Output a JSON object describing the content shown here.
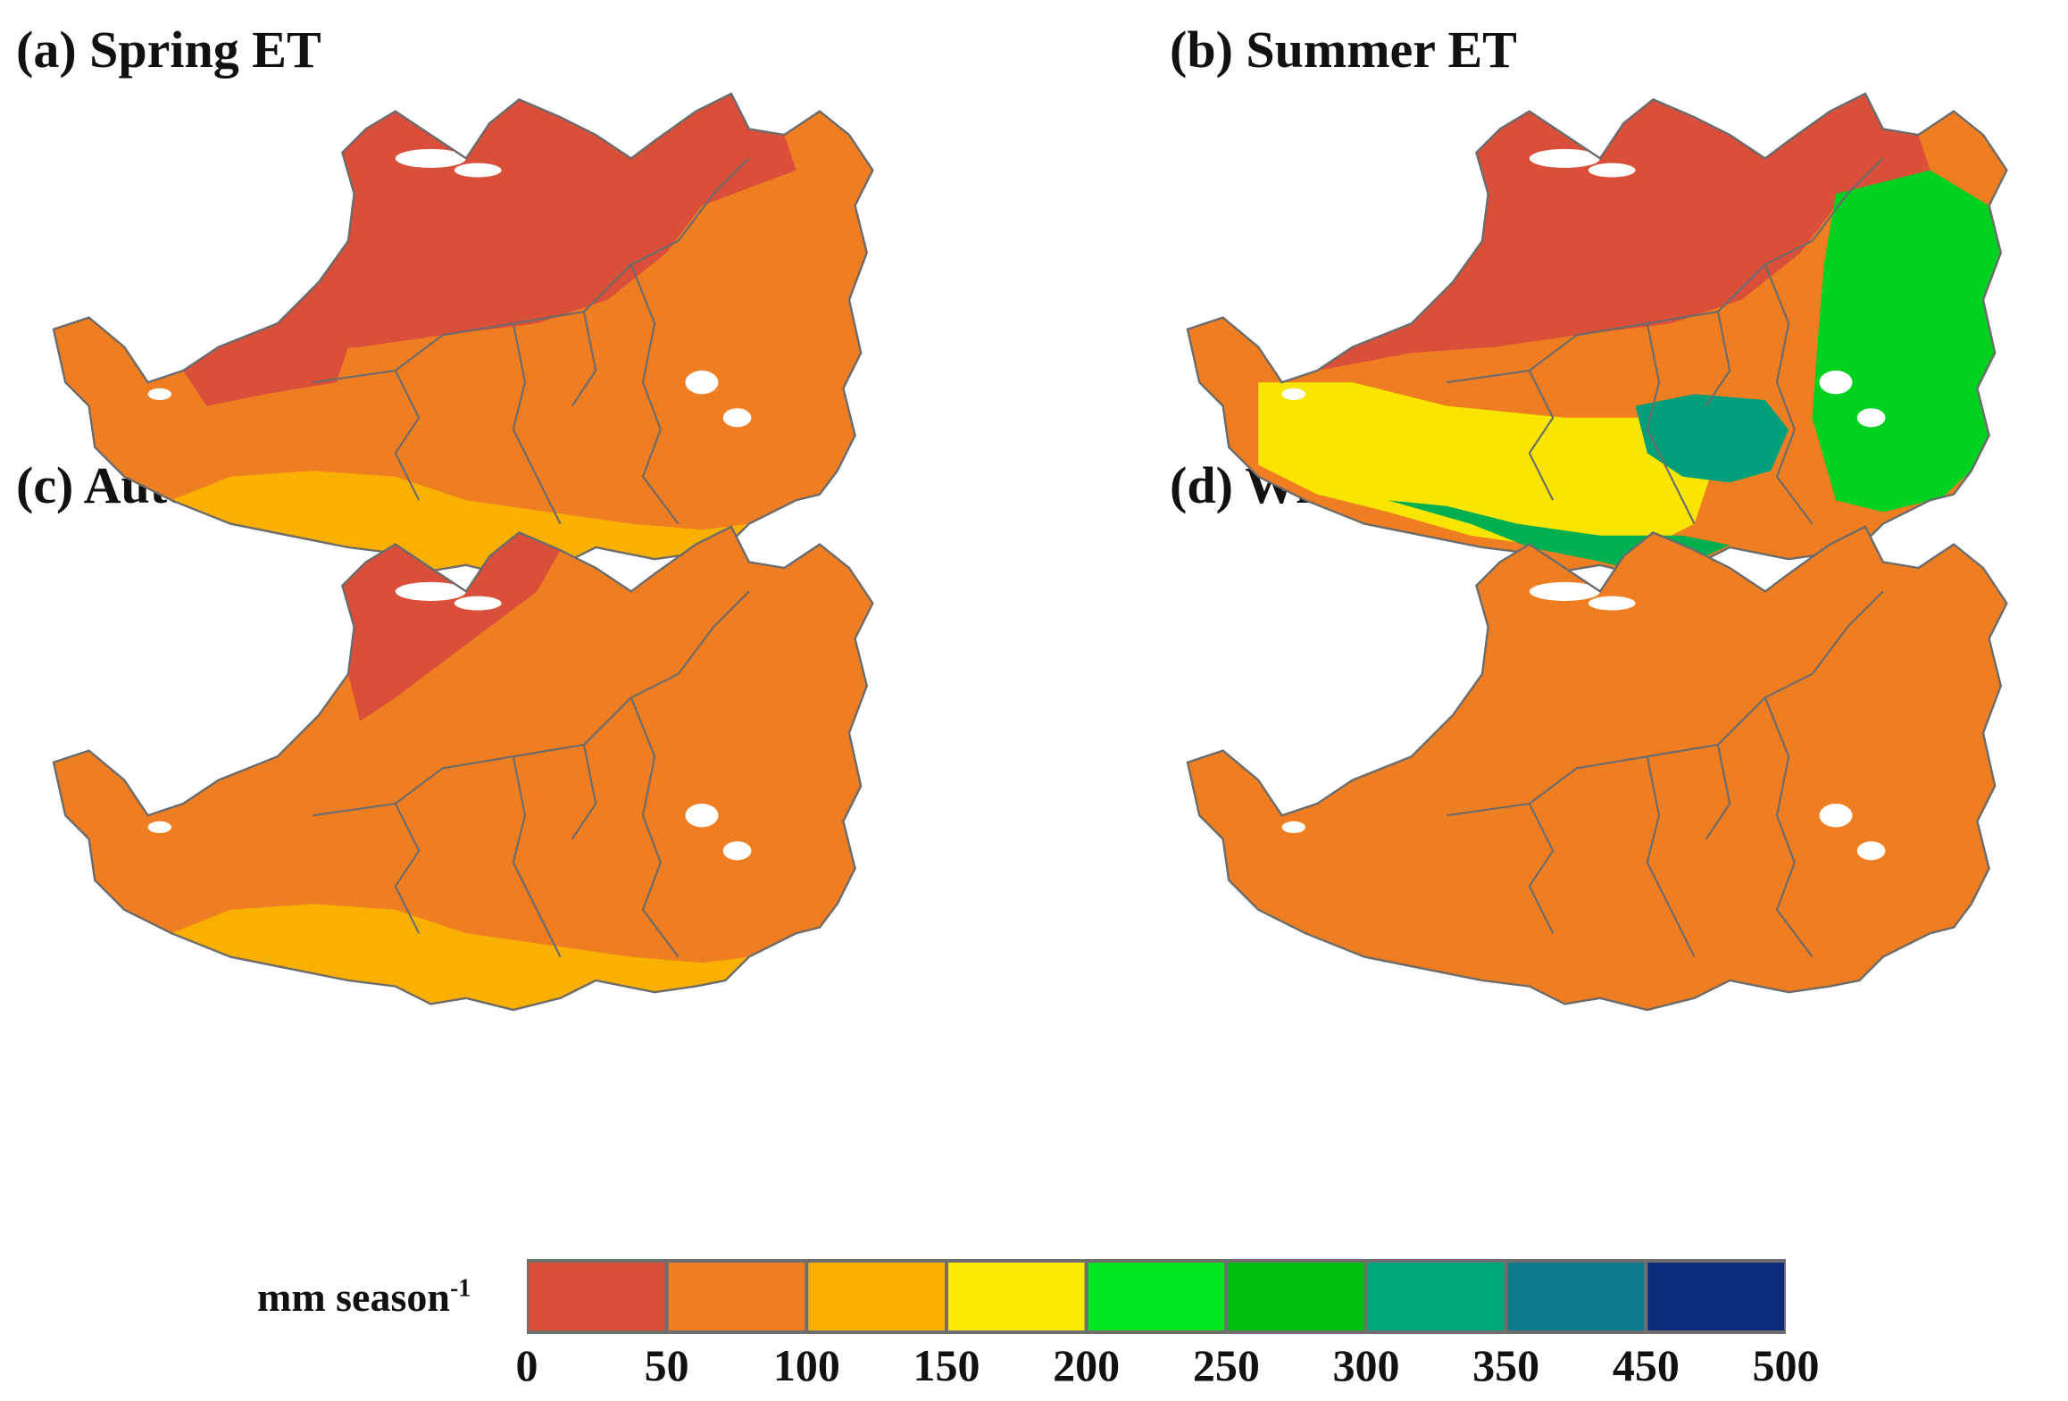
{
  "panels": [
    {
      "id": "a",
      "title": "(a) Spring ET",
      "base": "#ef7d22",
      "zones": [
        [
          "#d94f3a",
          "north"
        ],
        [
          "#f9b000",
          "southstrip"
        ],
        [
          "#d94f3a",
          "west"
        ]
      ]
    },
    {
      "id": "b",
      "title": "(b) Summer ET",
      "base": "#ef7d22",
      "zones": [
        [
          "#d94f3a",
          "north"
        ],
        [
          "#f9e500",
          "south"
        ],
        [
          "#00d121",
          "east"
        ],
        [
          "#009f7a",
          "core"
        ],
        [
          "#00b050",
          "southedge"
        ]
      ]
    },
    {
      "id": "c",
      "title": "(c) Autumn ET",
      "base": "#ef7d22",
      "zones": [
        [
          "#d94f3a",
          "nw"
        ],
        [
          "#f9b000",
          "southstrip"
        ]
      ]
    },
    {
      "id": "d",
      "title": "(d) Winter ET",
      "base": "#ef7d22",
      "zones": []
    }
  ],
  "legend": {
    "label": "mm season",
    "label_sup": "-1",
    "ticks": [
      "0",
      "50",
      "100",
      "150",
      "200",
      "250",
      "300",
      "350",
      "450",
      "500"
    ],
    "colors": [
      "#d94f3a",
      "#ef7d22",
      "#f9b000",
      "#f9ec00",
      "#00e620",
      "#00c00e",
      "#00a87a",
      "#0a7a8c",
      "#0c2b7a"
    ]
  }
}
